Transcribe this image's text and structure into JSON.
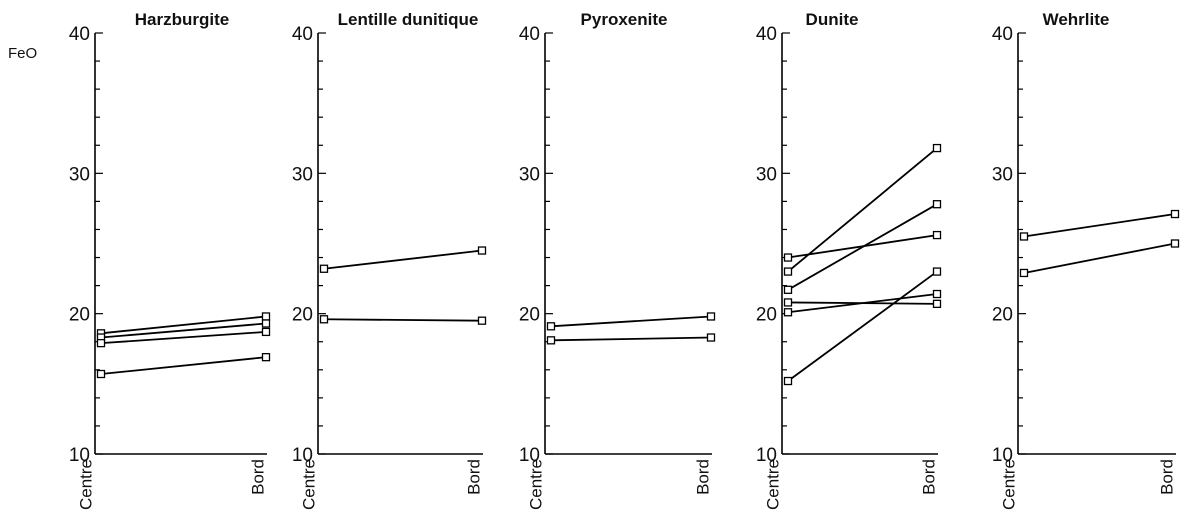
{
  "figure": {
    "ylabel": "FeO"
  },
  "chart_data": [
    {
      "type": "line",
      "title": "Harzburgite",
      "categories": [
        "Centre",
        "Bord"
      ],
      "ylim": [
        10,
        40
      ],
      "yticks": [
        10,
        20,
        30,
        40
      ],
      "series": [
        {
          "values": [
            18.6,
            19.8
          ]
        },
        {
          "values": [
            18.3,
            19.3
          ]
        },
        {
          "values": [
            17.9,
            18.7
          ]
        },
        {
          "values": [
            15.7,
            16.9
          ]
        }
      ]
    },
    {
      "type": "line",
      "title": "Lentille dunitique",
      "categories": [
        "Centre",
        "Bord"
      ],
      "ylim": [
        10,
        40
      ],
      "yticks": [
        10,
        20,
        30,
        40
      ],
      "series": [
        {
          "values": [
            23.2,
            24.5
          ]
        },
        {
          "values": [
            19.6,
            19.5
          ]
        }
      ]
    },
    {
      "type": "line",
      "title": "Pyroxenite",
      "categories": [
        "Centre",
        "Bord"
      ],
      "ylim": [
        10,
        40
      ],
      "yticks": [
        10,
        20,
        30,
        40
      ],
      "series": [
        {
          "values": [
            19.1,
            19.8
          ]
        },
        {
          "values": [
            18.1,
            18.3
          ]
        }
      ]
    },
    {
      "type": "line",
      "title": "Dunite",
      "categories": [
        "Centre",
        "Bord"
      ],
      "ylim": [
        10,
        40
      ],
      "yticks": [
        10,
        20,
        30,
        40
      ],
      "series": [
        {
          "values": [
            23.0,
            31.8
          ]
        },
        {
          "values": [
            21.7,
            27.8
          ]
        },
        {
          "values": [
            24.0,
            25.6
          ]
        },
        {
          "values": [
            20.8,
            20.7
          ]
        },
        {
          "values": [
            20.1,
            21.4
          ]
        },
        {
          "values": [
            15.2,
            23.0
          ]
        }
      ]
    },
    {
      "type": "line",
      "title": "Wehrlite",
      "categories": [
        "Centre",
        "Bord"
      ],
      "ylim": [
        10,
        40
      ],
      "yticks": [
        10,
        20,
        30,
        40
      ],
      "series": [
        {
          "values": [
            25.5,
            27.1
          ]
        },
        {
          "values": [
            22.9,
            25.0
          ]
        }
      ]
    }
  ]
}
